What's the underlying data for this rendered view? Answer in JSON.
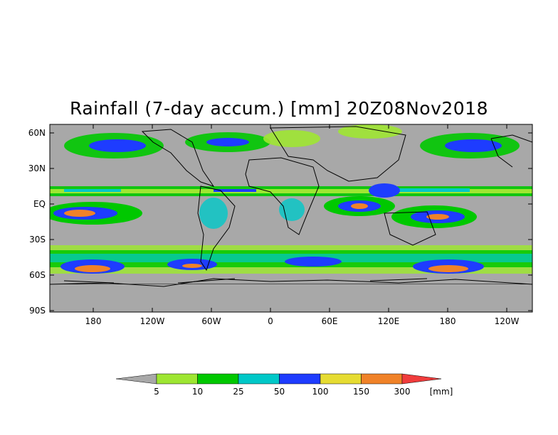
{
  "title": "Rainfall (7-day accum.) [mm] 20Z08Nov2018",
  "map": {
    "projection": "cylindrical equidistant",
    "longitude_range": [
      "140E",
      "100W"
    ],
    "latitude_range": [
      "90S",
      "67N"
    ],
    "background_color": "#a8a8a8",
    "lat_ticks": [
      "60N",
      "30N",
      "EQ",
      "30S",
      "60S",
      "90S"
    ],
    "lon_ticks": [
      "180",
      "120W",
      "60W",
      "0",
      "60E",
      "120E",
      "180",
      "120W"
    ]
  },
  "legend": {
    "unit": "[mm]",
    "low_color": "#a8a8a8",
    "high_color": "#f03c3c",
    "bins": [
      {
        "label": "5",
        "color": "#9ee632"
      },
      {
        "label": "10",
        "color": "#00c800"
      },
      {
        "label": "25",
        "color": "#00c8c8"
      },
      {
        "label": "50",
        "color": "#1e3cff"
      },
      {
        "label": "100",
        "color": "#e6dc32"
      },
      {
        "label": "150",
        "color": "#f08228"
      },
      {
        "label": "300",
        "color": "#f03c3c"
      }
    ]
  }
}
